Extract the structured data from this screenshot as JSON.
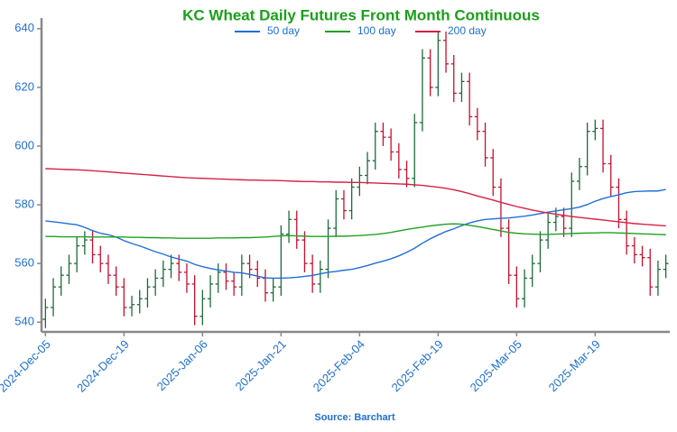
{
  "chart_data": {
    "type": "ohlc",
    "title": "KC Wheat Daily Futures Front Month Continuous",
    "source": "Source: Barchart",
    "categories": [
      "2024-Dec-05",
      null,
      null,
      null,
      null,
      null,
      null,
      null,
      null,
      null,
      "2024-Dec-19",
      null,
      null,
      null,
      null,
      null,
      null,
      null,
      null,
      null,
      "2025-Jan-06",
      null,
      null,
      null,
      null,
      null,
      null,
      null,
      null,
      null,
      "2025-Jan-21",
      null,
      null,
      null,
      null,
      null,
      null,
      null,
      null,
      null,
      "2025-Feb-04",
      null,
      null,
      null,
      null,
      null,
      null,
      null,
      null,
      null,
      "2025-Feb-19",
      null,
      null,
      null,
      null,
      null,
      null,
      null,
      null,
      null,
      "2025-Mar-05",
      null,
      null,
      null,
      null,
      null,
      null,
      null,
      null,
      null,
      "2025-Mar-19",
      null,
      null,
      null,
      null,
      null,
      null,
      null,
      null,
      null
    ],
    "open": [
      541,
      545,
      552,
      556,
      560,
      566,
      568,
      563,
      560,
      556,
      552,
      545,
      546,
      548,
      552,
      555,
      558,
      560,
      557,
      553,
      542,
      548,
      553,
      557,
      554,
      552,
      560,
      558,
      555,
      550,
      552,
      570,
      575,
      568,
      560,
      553,
      558,
      572,
      582,
      578,
      586,
      590,
      595,
      605,
      603,
      598,
      592,
      589,
      608,
      630,
      620,
      636,
      628,
      618,
      622,
      610,
      605,
      596,
      586,
      572,
      556,
      548,
      555,
      560,
      568,
      574,
      576,
      572,
      588,
      593,
      605,
      606,
      594,
      586,
      575,
      566,
      563,
      562,
      552,
      558
    ],
    "high": [
      548,
      555,
      559,
      563,
      569,
      571,
      571,
      566,
      563,
      559,
      555,
      549,
      551,
      555,
      558,
      561,
      563,
      563,
      560,
      556,
      551,
      556,
      560,
      560,
      557,
      563,
      563,
      561,
      558,
      555,
      573,
      578,
      578,
      571,
      563,
      561,
      575,
      585,
      585,
      589,
      593,
      598,
      608,
      608,
      606,
      601,
      595,
      611,
      633,
      633,
      639,
      639,
      631,
      625,
      625,
      613,
      608,
      599,
      589,
      575,
      559,
      558,
      563,
      571,
      577,
      579,
      579,
      591,
      596,
      608,
      609,
      609,
      597,
      589,
      578,
      569,
      566,
      565,
      561,
      563
    ],
    "low": [
      538,
      542,
      549,
      553,
      557,
      563,
      560,
      557,
      553,
      549,
      542,
      542,
      543,
      545,
      549,
      552,
      555,
      554,
      550,
      539,
      539,
      545,
      550,
      551,
      549,
      549,
      555,
      552,
      547,
      547,
      549,
      567,
      565,
      557,
      550,
      550,
      555,
      569,
      575,
      575,
      583,
      587,
      592,
      600,
      595,
      589,
      586,
      586,
      605,
      617,
      617,
      625,
      615,
      615,
      607,
      602,
      593,
      583,
      569,
      553,
      545,
      545,
      552,
      557,
      565,
      571,
      569,
      569,
      585,
      590,
      602,
      591,
      583,
      572,
      563,
      560,
      559,
      549,
      549,
      555
    ],
    "close": [
      545,
      552,
      556,
      560,
      566,
      568,
      563,
      560,
      556,
      552,
      545,
      546,
      548,
      552,
      555,
      558,
      560,
      557,
      553,
      542,
      548,
      553,
      557,
      554,
      552,
      560,
      558,
      555,
      550,
      552,
      570,
      575,
      568,
      560,
      553,
      558,
      572,
      582,
      578,
      586,
      590,
      595,
      605,
      603,
      598,
      592,
      589,
      608,
      630,
      620,
      636,
      628,
      618,
      622,
      610,
      605,
      596,
      586,
      572,
      556,
      548,
      555,
      560,
      568,
      574,
      576,
      572,
      588,
      593,
      605,
      606,
      594,
      586,
      575,
      566,
      563,
      562,
      552,
      558,
      560
    ],
    "up_color": "#1e6b3a",
    "down_color": "#c8102e",
    "series": [
      {
        "name": "50 day",
        "color": "#1f6fd6",
        "values": [
          574.5,
          574.2,
          573.9,
          573.5,
          573.2,
          572.3,
          571.2,
          570.3,
          569.8,
          569,
          567.8,
          566.8,
          566,
          565,
          564,
          563.2,
          562.2,
          561.5,
          560.8,
          559.7,
          558.9,
          558.3,
          557.8,
          557.4,
          557,
          556.8,
          556.3,
          555.7,
          555.1,
          555,
          555,
          555.1,
          555.3,
          555.6,
          555.9,
          556.5,
          557,
          557.3,
          557.7,
          558,
          558.6,
          559.3,
          560.1,
          560.8,
          561.6,
          562.6,
          563.8,
          565.2,
          566.9,
          568.4,
          569.7,
          570.9,
          571.8,
          572.9,
          573.8,
          574.5,
          575,
          575.2,
          575.4,
          575.5,
          575.8,
          576.1,
          576.5,
          577,
          577.5,
          577.9,
          578.3,
          578.7,
          579.2,
          580.1,
          581.2,
          582.1,
          582.8,
          583.4,
          584.1,
          584.5,
          584.6,
          584.7,
          584.7,
          585.2
        ]
      },
      {
        "name": "100 day",
        "color": "#22a022",
        "values": [
          569.2,
          569.2,
          569.1,
          569.1,
          569.1,
          569.1,
          569,
          569,
          569,
          569,
          569,
          568.9,
          568.9,
          568.8,
          568.8,
          568.7,
          568.7,
          568.6,
          568.6,
          568.6,
          568.6,
          568.6,
          568.7,
          568.7,
          568.7,
          568.8,
          568.8,
          568.9,
          569,
          569.2,
          569.4,
          569.5,
          569.4,
          569.3,
          569.2,
          569.2,
          569.2,
          569.3,
          569.3,
          569.4,
          569.5,
          569.7,
          569.9,
          570.2,
          570.6,
          571.1,
          571.6,
          572,
          572.4,
          572.8,
          573.1,
          573.4,
          573.5,
          573.4,
          573,
          572.6,
          572.1,
          571.6,
          571.1,
          570.6,
          570.3,
          570.1,
          570,
          569.9,
          569.9,
          570,
          570.1,
          570.2,
          570.3,
          570.4,
          570.4,
          570.5,
          570.5,
          570.4,
          570.3,
          570.2,
          570.1,
          570,
          569.9,
          569.8
        ]
      },
      {
        "name": "200 day",
        "color": "#d62048",
        "values": [
          592.3,
          592.2,
          592.1,
          592,
          591.9,
          591.8,
          591.6,
          591.4,
          591.2,
          591,
          590.8,
          590.6,
          590.4,
          590.2,
          590,
          589.8,
          589.6,
          589.4,
          589.2,
          589.1,
          589,
          588.9,
          588.8,
          588.7,
          588.6,
          588.5,
          588.4,
          588.4,
          588.3,
          588.3,
          588.2,
          588.1,
          588,
          587.9,
          587.9,
          587.8,
          587.8,
          587.7,
          587.7,
          587.6,
          587.6,
          587.5,
          587.4,
          587.3,
          587.2,
          587.1,
          587,
          586.8,
          586.6,
          586.3,
          586,
          585.6,
          585.1,
          584.5,
          583.8,
          583,
          582.3,
          581.6,
          580.8,
          580.1,
          579.4,
          578.8,
          578.2,
          577.7,
          577.2,
          576.8,
          576.4,
          576,
          575.7,
          575.4,
          575.1,
          574.8,
          574.5,
          574.2,
          573.9,
          573.6,
          573.4,
          573.2,
          573,
          572.8
        ]
      }
    ],
    "ylim": [
      537,
      643
    ],
    "yticks": [
      540,
      560,
      580,
      600,
      620,
      640
    ],
    "grid": false
  }
}
